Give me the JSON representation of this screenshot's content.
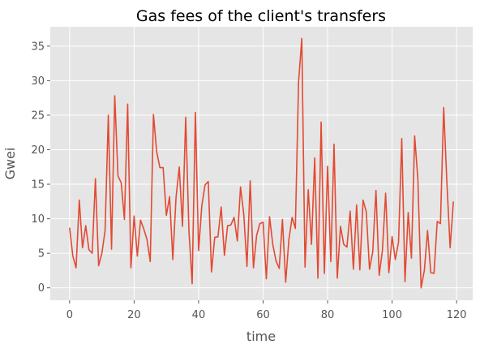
{
  "chart_data": {
    "type": "line",
    "title": "Gas fees of the client's transfers",
    "xlabel": "time",
    "ylabel": "Gwei",
    "xlim": [
      -6,
      125
    ],
    "ylim": [
      -1.8,
      37.8
    ],
    "x_ticks": [
      0,
      20,
      40,
      60,
      80,
      100,
      120
    ],
    "y_ticks": [
      0,
      5,
      10,
      15,
      20,
      25,
      30,
      35
    ],
    "grid": true,
    "background": "#E5E5E5",
    "grid_color": "#FFFFFF",
    "series": [
      {
        "color": "#E24A33",
        "x": [
          0,
          1,
          2,
          3,
          4,
          5,
          6,
          7,
          8,
          9,
          10,
          11,
          12,
          13,
          14,
          15,
          16,
          17,
          18,
          19,
          20,
          21,
          22,
          23,
          24,
          25,
          26,
          27,
          28,
          29,
          30,
          31,
          32,
          33,
          34,
          35,
          36,
          37,
          38,
          39,
          40,
          41,
          42,
          43,
          44,
          45,
          46,
          47,
          48,
          49,
          50,
          51,
          52,
          53,
          54,
          55,
          56,
          57,
          58,
          59,
          60,
          61,
          62,
          63,
          64,
          65,
          66,
          67,
          68,
          69,
          70,
          71,
          72,
          73,
          74,
          75,
          76,
          77,
          78,
          79,
          80,
          81,
          82,
          83,
          84,
          85,
          86,
          87,
          88,
          89,
          90,
          91,
          92,
          93,
          94,
          95,
          96,
          97,
          98,
          99,
          100,
          101,
          102,
          103,
          104,
          105,
          106,
          107,
          108,
          109,
          110,
          111,
          112,
          113,
          114,
          115,
          116,
          117,
          118,
          119
        ],
        "y": [
          8.7,
          4.6,
          2.9,
          12.7,
          5.8,
          9.0,
          5.5,
          5.0,
          15.8,
          3.2,
          5.0,
          8.3,
          25.0,
          5.6,
          27.8,
          16.2,
          15.2,
          9.9,
          26.6,
          2.9,
          10.4,
          4.6,
          9.8,
          8.5,
          7.0,
          3.8,
          25.1,
          19.7,
          17.4,
          17.4,
          10.5,
          13.2,
          4.1,
          13.1,
          17.5,
          8.9,
          24.7,
          8.2,
          0.6,
          25.4,
          5.4,
          11.9,
          14.9,
          15.4,
          2.3,
          7.3,
          7.4,
          11.7,
          4.7,
          9.0,
          9.1,
          10.2,
          6.8,
          14.6,
          10.7,
          3.1,
          15.5,
          2.9,
          7.6,
          9.3,
          9.5,
          1.3,
          10.3,
          6.3,
          3.9,
          2.8,
          9.9,
          0.8,
          7.0,
          10.2,
          8.6,
          29.8,
          36.1,
          3.0,
          14.2,
          6.3,
          18.8,
          1.4,
          24.0,
          2.1,
          17.6,
          3.8,
          20.8,
          1.4,
          8.9,
          6.3,
          5.9,
          11.1,
          2.7,
          12.0,
          2.6,
          12.7,
          11.0,
          2.7,
          5.2,
          14.1,
          1.8,
          5.4,
          13.7,
          2.2,
          7.4,
          4.1,
          6.6,
          21.6,
          0.9,
          10.9,
          4.3,
          22.0,
          15.7,
          0.0,
          2.5,
          8.3,
          2.2,
          2.1,
          9.6,
          9.3,
          26.1,
          15.2,
          5.8,
          12.5
        ]
      }
    ]
  }
}
